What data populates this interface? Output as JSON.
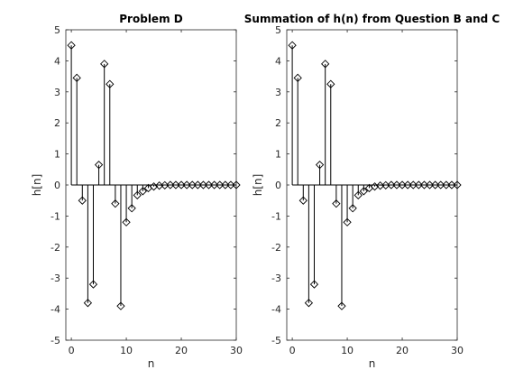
{
  "chart_data": [
    {
      "type": "stem",
      "title": "Problem D",
      "xlabel": "n",
      "ylabel": "h[n]",
      "xlim": [
        -1,
        30
      ],
      "ylim": [
        -5,
        5
      ],
      "xticks": [
        0,
        10,
        20,
        30
      ],
      "yticks": [
        -5,
        -4,
        -3,
        -2,
        -1,
        0,
        1,
        2,
        3,
        4,
        5
      ],
      "marker": "diamond",
      "color": "#000000",
      "x": [
        0,
        1,
        2,
        3,
        4,
        5,
        6,
        7,
        8,
        9,
        10,
        11,
        12,
        13,
        14,
        15,
        16,
        17,
        18,
        19,
        20,
        21,
        22,
        23,
        24,
        25,
        26,
        27,
        28,
        29,
        30
      ],
      "values": [
        4.5,
        3.45,
        -0.5,
        -3.8,
        -3.2,
        0.65,
        3.9,
        3.25,
        -0.6,
        -3.9,
        -1.2,
        -0.75,
        -0.33,
        -0.2,
        -0.1,
        -0.05,
        -0.02,
        -0.01,
        0,
        0,
        0,
        0,
        0,
        0,
        0,
        0,
        0,
        0,
        0,
        0,
        0
      ]
    },
    {
      "type": "stem",
      "title": "Summation of h(n) from Question B and C",
      "xlabel": "n",
      "ylabel": "h[n]",
      "xlim": [
        -1,
        30
      ],
      "ylim": [
        -5,
        5
      ],
      "xticks": [
        0,
        10,
        20,
        30
      ],
      "yticks": [
        -5,
        -4,
        -3,
        -2,
        -1,
        0,
        1,
        2,
        3,
        4,
        5
      ],
      "marker": "diamond",
      "color": "#000000",
      "x": [
        0,
        1,
        2,
        3,
        4,
        5,
        6,
        7,
        8,
        9,
        10,
        11,
        12,
        13,
        14,
        15,
        16,
        17,
        18,
        19,
        20,
        21,
        22,
        23,
        24,
        25,
        26,
        27,
        28,
        29,
        30
      ],
      "values": [
        4.5,
        3.45,
        -0.5,
        -3.8,
        -3.2,
        0.65,
        3.9,
        3.25,
        -0.6,
        -3.9,
        -1.2,
        -0.75,
        -0.33,
        -0.2,
        -0.1,
        -0.05,
        -0.02,
        -0.01,
        0,
        0,
        0,
        0,
        0,
        0,
        0,
        0,
        0,
        0,
        0,
        0,
        0
      ]
    }
  ]
}
